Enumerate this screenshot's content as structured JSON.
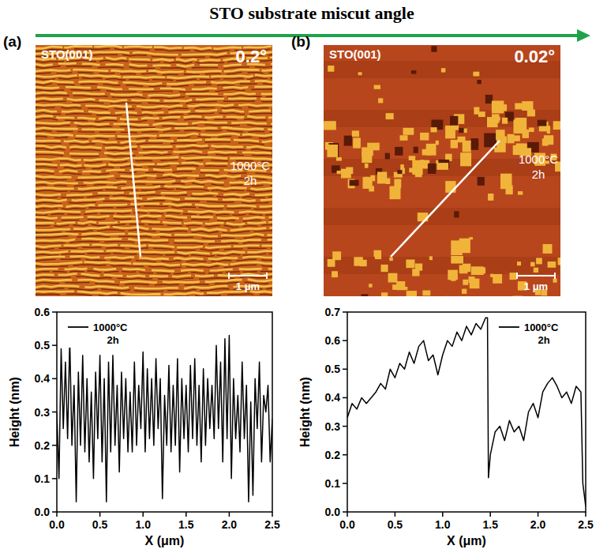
{
  "header": {
    "title": "STO substrate miscut angle"
  },
  "panels": [
    {
      "label": "(a)",
      "substrate": "STO(001)",
      "miscut": "0.2°",
      "anneal": [
        "1000°C",
        "2h"
      ],
      "scale_bar": "1 μm"
    },
    {
      "label": "(b)",
      "substrate": "STO(001)",
      "miscut": "0.02°",
      "anneal": [
        "1000°C",
        "2h"
      ],
      "scale_bar": "1 μm"
    }
  ],
  "chart_data": [
    {
      "type": "line",
      "x_label": "X (μm)",
      "y_label": "Height (nm)",
      "legend": "top-left",
      "xlim": [
        0,
        2.5
      ],
      "ylim": [
        0,
        0.6
      ],
      "xticks": [
        {
          "value": 0,
          "label": "0.0"
        },
        0.5,
        {
          "value": 1,
          "label": "1.0"
        },
        1.5,
        {
          "value": 2,
          "label": "2.0"
        },
        2.5
      ],
      "yticks": [
        {
          "value": 0,
          "label": "0.0"
        },
        0.1,
        0.2,
        0.3,
        0.4,
        0.5,
        0.6
      ],
      "x": [
        0,
        0.025,
        0.05,
        0.075,
        0.1,
        0.125,
        0.15,
        0.175,
        0.2,
        0.225,
        0.25,
        0.275,
        0.3,
        0.325,
        0.35,
        0.375,
        0.4,
        0.425,
        0.45,
        0.475,
        0.5,
        0.525,
        0.55,
        0.575,
        0.6,
        0.625,
        0.65,
        0.675,
        0.7,
        0.725,
        0.75,
        0.775,
        0.8,
        0.825,
        0.85,
        0.875,
        0.9,
        0.925,
        0.95,
        0.975,
        1.0,
        1.025,
        1.05,
        1.075,
        1.1,
        1.125,
        1.15,
        1.175,
        1.2,
        1.225,
        1.25,
        1.275,
        1.3,
        1.325,
        1.35,
        1.375,
        1.4,
        1.425,
        1.45,
        1.475,
        1.5,
        1.525,
        1.55,
        1.575,
        1.6,
        1.625,
        1.65,
        1.675,
        1.7,
        1.725,
        1.75,
        1.775,
        1.8,
        1.825,
        1.85,
        1.875,
        1.9,
        1.925,
        1.95,
        1.975,
        2.0,
        2.025,
        2.05,
        2.075,
        2.1,
        2.125,
        2.15,
        2.175,
        2.2,
        2.225,
        2.25,
        2.275,
        2.3,
        2.325,
        2.35,
        2.375,
        2.4,
        2.425,
        2.45,
        2.475,
        2.5
      ],
      "series": [
        {
          "name": "1000°C 2h",
          "color": "#000000",
          "values": [
            0.3,
            0.1,
            0.49,
            0.25,
            0.45,
            0.22,
            0.52,
            0.2,
            0.38,
            0.03,
            0.42,
            0.2,
            0.47,
            0.18,
            0.4,
            0.15,
            0.36,
            0.1,
            0.42,
            0.22,
            0.47,
            0.15,
            0.4,
            0.03,
            0.45,
            0.18,
            0.47,
            0.2,
            0.38,
            0.12,
            0.42,
            0.22,
            0.4,
            0.18,
            0.36,
            0.18,
            0.45,
            0.2,
            0.38,
            0.25,
            0.48,
            0.18,
            0.43,
            0.22,
            0.4,
            0.2,
            0.46,
            0.25,
            0.4,
            0.04,
            0.35,
            0.2,
            0.44,
            0.18,
            0.38,
            0.2,
            0.46,
            0.12,
            0.4,
            0.22,
            0.38,
            0.18,
            0.44,
            0.22,
            0.46,
            0.2,
            0.38,
            0.15,
            0.43,
            0.2,
            0.4,
            0.25,
            0.38,
            0.22,
            0.5,
            0.25,
            0.45,
            0.15,
            0.52,
            0.22,
            0.53,
            0.1,
            0.4,
            0.22,
            0.35,
            0.18,
            0.45,
            0.22,
            0.38,
            0.03,
            0.33,
            0.05,
            0.4,
            0.25,
            0.45,
            0.15,
            0.35,
            0.3,
            0.38,
            0.15,
            0.28
          ]
        }
      ]
    },
    {
      "type": "line",
      "x_label": "X (μm)",
      "y_label": "Height (nm)",
      "legend": "top-right",
      "xlim": [
        0,
        2.5
      ],
      "ylim": [
        0,
        0.7
      ],
      "xticks": [
        {
          "value": 0,
          "label": "0.0"
        },
        0.5,
        {
          "value": 1,
          "label": "1.0"
        },
        1.5,
        {
          "value": 2,
          "label": "2.0"
        },
        2.5
      ],
      "yticks": [
        {
          "value": 0,
          "label": "0.0"
        },
        0.1,
        0.2,
        0.3,
        0.4,
        0.5,
        0.6,
        0.7
      ],
      "x": [
        0,
        0.05,
        0.1,
        0.15,
        0.2,
        0.25,
        0.3,
        0.35,
        0.4,
        0.45,
        0.5,
        0.55,
        0.6,
        0.65,
        0.7,
        0.75,
        0.8,
        0.85,
        0.9,
        0.95,
        1.0,
        1.05,
        1.1,
        1.15,
        1.2,
        1.25,
        1.3,
        1.35,
        1.4,
        1.45,
        1.47,
        1.48,
        1.5,
        1.55,
        1.6,
        1.65,
        1.7,
        1.75,
        1.8,
        1.85,
        1.9,
        1.95,
        2.0,
        2.05,
        2.1,
        2.15,
        2.2,
        2.25,
        2.3,
        2.35,
        2.4,
        2.45,
        2.47,
        2.5
      ],
      "series": [
        {
          "name": "1000°C 2h",
          "color": "#000000",
          "values": [
            0.33,
            0.38,
            0.36,
            0.4,
            0.38,
            0.4,
            0.42,
            0.45,
            0.43,
            0.5,
            0.47,
            0.52,
            0.5,
            0.56,
            0.52,
            0.58,
            0.6,
            0.53,
            0.55,
            0.48,
            0.55,
            0.6,
            0.58,
            0.63,
            0.6,
            0.65,
            0.62,
            0.66,
            0.64,
            0.68,
            0.68,
            0.12,
            0.2,
            0.28,
            0.3,
            0.25,
            0.32,
            0.28,
            0.3,
            0.25,
            0.35,
            0.38,
            0.33,
            0.42,
            0.45,
            0.47,
            0.44,
            0.4,
            0.42,
            0.38,
            0.44,
            0.42,
            0.1,
            0.02
          ]
        }
      ]
    }
  ]
}
